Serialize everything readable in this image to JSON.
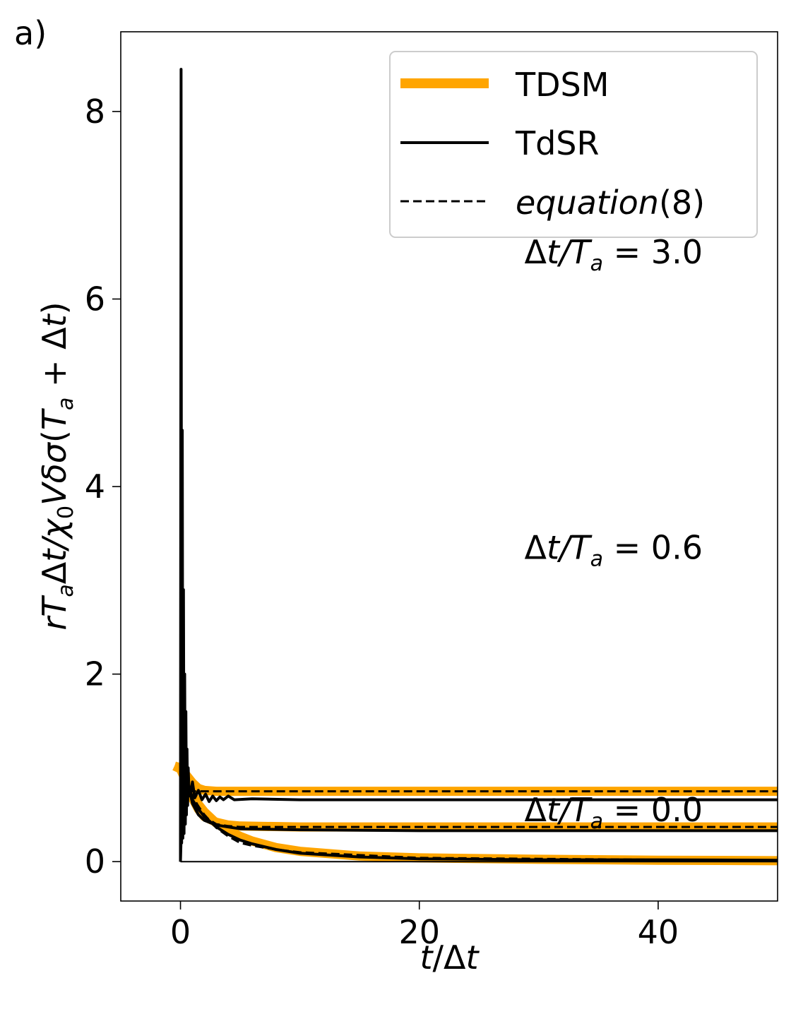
{
  "panel_label": "a)",
  "colors": {
    "tdsm": "#FFA500",
    "tdsr": "#000000",
    "equation": "#000000",
    "frame": "#000000"
  },
  "chart_data": {
    "type": "line",
    "xlabel": "t/Δt",
    "ylabel": "rT_aΔt/χ_0VδσT_a+Δt)",
    "xlim": [
      -5,
      50
    ],
    "ylim": [
      -0.42,
      8.85
    ],
    "xticks": [
      0,
      20,
      40
    ],
    "yticks": [
      0,
      2,
      4,
      6,
      8
    ],
    "legend": {
      "placement": "top-right",
      "entries": [
        {
          "label": "TDSM",
          "style": "thick-orange"
        },
        {
          "label": "TdSR",
          "style": "solid-black"
        },
        {
          "label": "equation(8)",
          "style": "dashed-black"
        }
      ]
    },
    "annotations": [
      {
        "text": "Δt/T_a = 3.0",
        "x": 28.8,
        "y": 6.5
      },
      {
        "text": "Δt/T_a = 0.6",
        "x": 28.8,
        "y": 3.35
      },
      {
        "text": "Δt/T_a = 0.0",
        "x": 28.8,
        "y": 0.55
      }
    ],
    "series": [
      {
        "group": "Δt/T_a = 3.0",
        "kind": "TDSM",
        "x": [
          -0.5,
          0,
          0.5,
          1,
          1.5,
          2,
          3,
          5,
          10,
          20,
          30,
          40,
          50
        ],
        "y": [
          1.02,
          1.0,
          0.92,
          0.84,
          0.78,
          0.76,
          0.75,
          0.75,
          0.75,
          0.75,
          0.75,
          0.75,
          0.75
        ]
      },
      {
        "group": "Δt/T_a = 0.6",
        "kind": "TDSM",
        "x": [
          -0.5,
          0,
          0.5,
          1,
          1.5,
          2,
          3,
          4,
          5,
          10,
          20,
          50
        ],
        "y": [
          1.02,
          0.99,
          0.85,
          0.68,
          0.56,
          0.48,
          0.42,
          0.39,
          0.38,
          0.37,
          0.37,
          0.37
        ]
      },
      {
        "group": "Δt/T_a = 0.0",
        "kind": "TDSM",
        "x": [
          -0.5,
          0,
          0.5,
          1,
          1.5,
          2,
          3,
          4,
          5,
          6,
          8,
          10,
          15,
          20,
          30,
          40,
          50
        ],
        "y": [
          1.02,
          0.99,
          0.86,
          0.72,
          0.61,
          0.53,
          0.41,
          0.33,
          0.27,
          0.22,
          0.15,
          0.11,
          0.06,
          0.04,
          0.025,
          0.015,
          0.01
        ]
      },
      {
        "group": "Δt/T_a = 3.0",
        "kind": "equation(8)",
        "x": [
          0.6,
          50
        ],
        "y": [
          0.75,
          0.75
        ]
      },
      {
        "group": "Δt/T_a = 0.6",
        "kind": "equation(8)",
        "x": [
          0,
          1,
          2,
          3,
          4,
          5,
          10,
          50
        ],
        "y": [
          1.0,
          0.7,
          0.48,
          0.4,
          0.38,
          0.37,
          0.37,
          0.37
        ]
      },
      {
        "group": "Δt/T_a = 0.0",
        "kind": "equation(8)",
        "x": [
          0,
          1,
          2,
          3,
          4,
          5,
          6,
          8,
          10,
          20,
          50
        ],
        "y": [
          1.0,
          0.68,
          0.5,
          0.36,
          0.27,
          0.2,
          0.17,
          0.13,
          0.1,
          0.04,
          0.01
        ]
      },
      {
        "group": "Δt/T_a = 3.0",
        "kind": "TdSR",
        "x": [
          0,
          0.05,
          0.1,
          0.15,
          0.2,
          0.25,
          0.3,
          0.35,
          0.4,
          0.45,
          0.5,
          0.55,
          0.6,
          0.65,
          0.7,
          0.8,
          1.0,
          1.2,
          1.5,
          1.8,
          2.1,
          2.4,
          2.7,
          3.0,
          3.3,
          3.6,
          4.0,
          4.5,
          6,
          10,
          20,
          50
        ],
        "y": [
          0,
          8.45,
          0.2,
          4.6,
          0.25,
          2.9,
          0.3,
          2.0,
          0.4,
          1.6,
          0.5,
          1.2,
          0.6,
          1.0,
          0.8,
          0.7,
          0.85,
          0.68,
          0.76,
          0.66,
          0.72,
          0.64,
          0.7,
          0.65,
          0.69,
          0.66,
          0.7,
          0.66,
          0.67,
          0.66,
          0.66,
          0.66
        ]
      },
      {
        "group": "Δt/T_a = 0.6",
        "kind": "TdSR",
        "x": [
          0,
          0.1,
          0.2,
          0.3,
          0.4,
          0.5,
          0.7,
          1.0,
          1.5,
          2,
          3,
          4,
          5,
          10,
          20,
          50
        ],
        "y": [
          0,
          2.2,
          0.3,
          1.4,
          0.4,
          1.0,
          0.8,
          0.62,
          0.5,
          0.44,
          0.39,
          0.37,
          0.35,
          0.34,
          0.33,
          0.33
        ]
      },
      {
        "group": "Δt/T_a = 0.0",
        "kind": "TdSR",
        "x": [
          0,
          0.2,
          0.5,
          1,
          1.5,
          2,
          3,
          4,
          5,
          6,
          8,
          10,
          15,
          20,
          30,
          40,
          50
        ],
        "y": [
          0.0,
          0.9,
          0.82,
          0.66,
          0.56,
          0.48,
          0.37,
          0.29,
          0.23,
          0.19,
          0.13,
          0.09,
          0.05,
          0.03,
          0.02,
          0.02,
          0.015
        ]
      },
      {
        "group": "baseline",
        "kind": "TdSR",
        "x": [
          0,
          50
        ],
        "y": [
          0,
          0
        ]
      }
    ]
  }
}
